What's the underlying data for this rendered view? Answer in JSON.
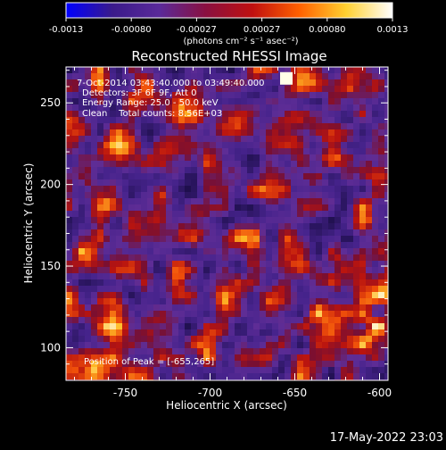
{
  "colorbar": {
    "tick_labels": [
      "-0.0013",
      "-0.00080",
      "-0.00027",
      "0.00027",
      "0.00080",
      "0.0013"
    ],
    "unit_label": "(photons cm⁻² s⁻¹ asec⁻²)",
    "colors": [
      "#0000ff",
      "#3a1a8a",
      "#5a2a9a",
      "#8a1040",
      "#c01010",
      "#ff6000",
      "#ffd030",
      "#ffffff"
    ]
  },
  "chart_data": {
    "type": "heatmap",
    "title": "Reconstructed RHESSI Image",
    "xlabel": "Heliocentric X (arcsec)",
    "ylabel": "Heliocentric Y (arcsec)",
    "xlim": [
      -785,
      -595
    ],
    "ylim": [
      80,
      272
    ],
    "x_ticks": [
      -750,
      -700,
      -650,
      -600
    ],
    "y_ticks": [
      100,
      150,
      200,
      250
    ],
    "x_tick_labels": [
      "-750",
      "-700",
      "-650",
      "-600"
    ],
    "y_tick_labels": [
      "100",
      "150",
      "200",
      "250"
    ],
    "value_range": [
      -0.0013,
      0.0013
    ],
    "annotations": [
      "7-Oct-2014 03:43:40.000 to 03:49:40.000",
      "Detectors: 3F 6F 9F, Att 0",
      "Energy Range: 25.0 - 50.0 keV",
      "Clean    Total counts: 8.56E+03"
    ],
    "peak_label": "Position of Peak = [-655,265]",
    "peak_position": [
      -655,
      265
    ]
  },
  "footer": {
    "date": "17-May-2022 23:03"
  }
}
